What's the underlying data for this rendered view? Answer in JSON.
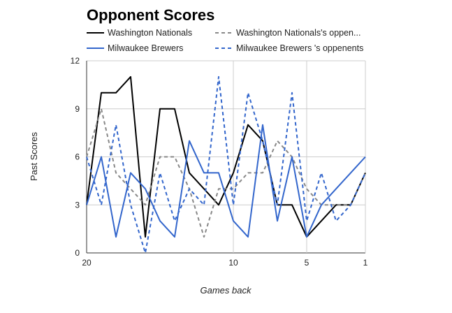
{
  "chart_data": {
    "type": "line",
    "title": "Opponent Scores",
    "xlabel": "Games back",
    "ylabel": "Past Scores",
    "x": [
      20,
      19,
      18,
      17,
      16,
      15,
      14,
      13,
      12,
      11,
      10,
      9,
      8,
      7,
      6,
      5,
      4,
      3,
      2,
      1
    ],
    "xlim": [
      20,
      1
    ],
    "ylim": [
      0,
      12
    ],
    "y_ticks": [
      0,
      3,
      6,
      9,
      12
    ],
    "x_ticks": [
      20,
      10,
      5,
      1
    ],
    "grid": true,
    "legend_position": "top",
    "series": [
      {
        "name": "Washington Nationals",
        "color": "#000000",
        "dash": "solid",
        "values": [
          3,
          10,
          10,
          11,
          1,
          9,
          9,
          5,
          4,
          3,
          5,
          8,
          7,
          3,
          3,
          1,
          2,
          3,
          3,
          5
        ]
      },
      {
        "name": "Washington Nationals's oppen...",
        "color": "#888888",
        "dash": "dashed",
        "values": [
          6,
          9,
          5,
          4,
          3,
          6,
          6,
          4,
          1,
          4,
          4,
          5,
          5,
          7,
          6,
          4,
          3,
          3,
          3,
          5
        ]
      },
      {
        "name": "Milwaukee Brewers",
        "color": "#3366cc",
        "dash": "solid",
        "values": [
          3,
          6,
          1,
          5,
          4,
          2,
          1,
          7,
          5,
          5,
          2,
          1,
          8,
          2,
          6,
          1,
          3,
          4,
          5,
          6
        ]
      },
      {
        "name": "Milwaukee Brewers 's oppenents",
        "color": "#3366cc",
        "dash": "dashed",
        "values": [
          6,
          3,
          8,
          3,
          0,
          5,
          2,
          4,
          3,
          11,
          3,
          10,
          7,
          3,
          10,
          2,
          5,
          2,
          3,
          5
        ]
      }
    ]
  }
}
